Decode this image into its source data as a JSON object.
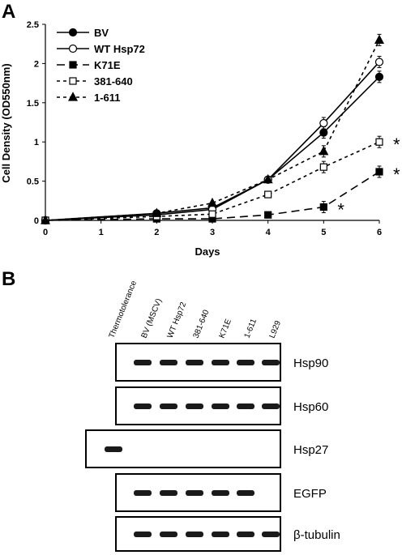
{
  "panels": {
    "a": "A",
    "b": "B"
  },
  "chart_data": {
    "type": "line",
    "xlabel": "Days",
    "ylabel": "Cell Density (OD550nm)",
    "xlim": [
      0,
      6
    ],
    "ylim": [
      0,
      2.5
    ],
    "xticks": [
      "0",
      "1",
      "2",
      "3",
      "4",
      "5",
      "6"
    ],
    "yticks": [
      "0",
      "0.5",
      "1",
      "1.5",
      "2",
      "2.5"
    ],
    "grid": false,
    "legend_position": "top-left",
    "series": [
      {
        "name": "BV",
        "marker": "filled-circle",
        "dash": "solid",
        "x": [
          0,
          2,
          3,
          4,
          5,
          6
        ],
        "y": [
          0,
          0.09,
          0.16,
          0.52,
          1.12,
          1.83
        ]
      },
      {
        "name": "WT Hsp72",
        "marker": "open-circle",
        "dash": "solid",
        "x": [
          0,
          2,
          3,
          4,
          5,
          6
        ],
        "y": [
          0,
          0.07,
          0.14,
          0.52,
          1.24,
          2.02
        ]
      },
      {
        "name": "K71E",
        "marker": "filled-square",
        "dash": "long-dash",
        "x": [
          0,
          2,
          3,
          4,
          5,
          6
        ],
        "y": [
          0,
          0.02,
          0.02,
          0.07,
          0.17,
          0.62
        ]
      },
      {
        "name": "381-640",
        "marker": "open-square",
        "dash": "short-dash",
        "x": [
          0,
          2,
          3,
          4,
          5,
          6
        ],
        "y": [
          0,
          0.05,
          0.08,
          0.33,
          0.68,
          1.0
        ]
      },
      {
        "name": "1-611",
        "marker": "filled-triangle",
        "dash": "short-dash",
        "x": [
          0,
          2,
          3,
          4,
          5,
          6
        ],
        "y": [
          0,
          0.09,
          0.22,
          0.52,
          0.88,
          2.3
        ]
      }
    ],
    "annotations": [
      {
        "text": "*",
        "series": "1-611",
        "x": 6,
        "y": 1.0
      },
      {
        "text": "*",
        "series": "K71E",
        "x": 6,
        "y": 0.62
      },
      {
        "text": "*",
        "series": "K71E",
        "x": 5,
        "y": 0.17
      }
    ]
  },
  "blot": {
    "lanes": [
      "Thermotolerance",
      "BV (MSCV)",
      "WT Hsp72",
      "381-640",
      "K71E",
      "1-611",
      "L929"
    ],
    "rows": [
      {
        "label": "Hsp90",
        "lanes_present": [
          1,
          2,
          3,
          4,
          5,
          6
        ]
      },
      {
        "label": "Hsp60",
        "lanes_present": [
          1,
          2,
          3,
          4,
          5,
          6
        ]
      },
      {
        "label": "Hsp27",
        "lanes_present": [
          0
        ]
      },
      {
        "label": "EGFP",
        "lanes_present": [
          1,
          2,
          3,
          4,
          5
        ]
      },
      {
        "label": "β-tubulin",
        "lanes_present": [
          1,
          2,
          3,
          4,
          5,
          6
        ]
      }
    ]
  }
}
